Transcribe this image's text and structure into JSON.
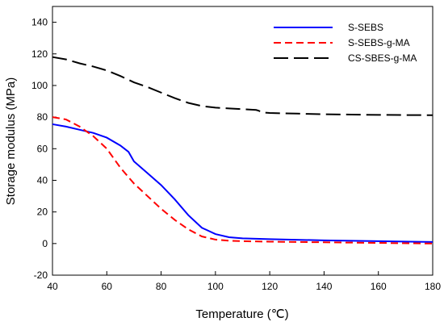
{
  "chart_data": {
    "type": "line",
    "xlabel": "Temperature (℃)",
    "ylabel": "Storage modulus (MPa)",
    "xlim": [
      40,
      180
    ],
    "ylim": [
      -20,
      150
    ],
    "xticks": [
      40,
      60,
      80,
      100,
      120,
      140,
      160,
      180
    ],
    "yticks": [
      -20,
      0,
      20,
      40,
      60,
      80,
      100,
      120,
      140
    ],
    "grid": false,
    "legend_position": "top-right",
    "series": [
      {
        "name": "S-SEBS",
        "color": "#0000ff",
        "dash": "solid",
        "x": [
          40,
          45,
          50,
          55,
          60,
          65,
          68,
          70,
          75,
          80,
          85,
          90,
          95,
          100,
          105,
          110,
          120,
          140,
          160,
          180
        ],
        "y": [
          75.5,
          74,
          72,
          70,
          67,
          62,
          58,
          52,
          44.5,
          37,
          28,
          18,
          10,
          6,
          4,
          3.3,
          2.8,
          2,
          1.5,
          1
        ]
      },
      {
        "name": "S-SEBS-g-MA",
        "color": "#ff0000",
        "dash": "dashed",
        "x": [
          40,
          45,
          50,
          55,
          60,
          65,
          70,
          75,
          80,
          85,
          90,
          95,
          100,
          105,
          110,
          120,
          140,
          160,
          180
        ],
        "y": [
          80,
          78.5,
          74,
          68,
          60,
          48,
          38,
          30,
          22,
          15,
          9,
          4.5,
          2.5,
          1.8,
          1.5,
          1.2,
          0.8,
          0.4,
          0
        ]
      },
      {
        "name": "CS-SBES-g-MA",
        "color": "#000000",
        "dash": "longdash",
        "x": [
          40,
          45,
          50,
          55,
          60,
          65,
          70,
          75,
          80,
          85,
          90,
          95,
          100,
          105,
          110,
          115,
          116,
          117,
          120,
          130,
          140,
          150,
          160,
          170,
          180
        ],
        "y": [
          118,
          116.5,
          114,
          112,
          109.5,
          106,
          102,
          99,
          95.5,
          92,
          89,
          87,
          86,
          85.5,
          85,
          84.5,
          84,
          83,
          82.6,
          82.2,
          81.8,
          81.6,
          81.4,
          81.3,
          81.2
        ]
      }
    ]
  }
}
